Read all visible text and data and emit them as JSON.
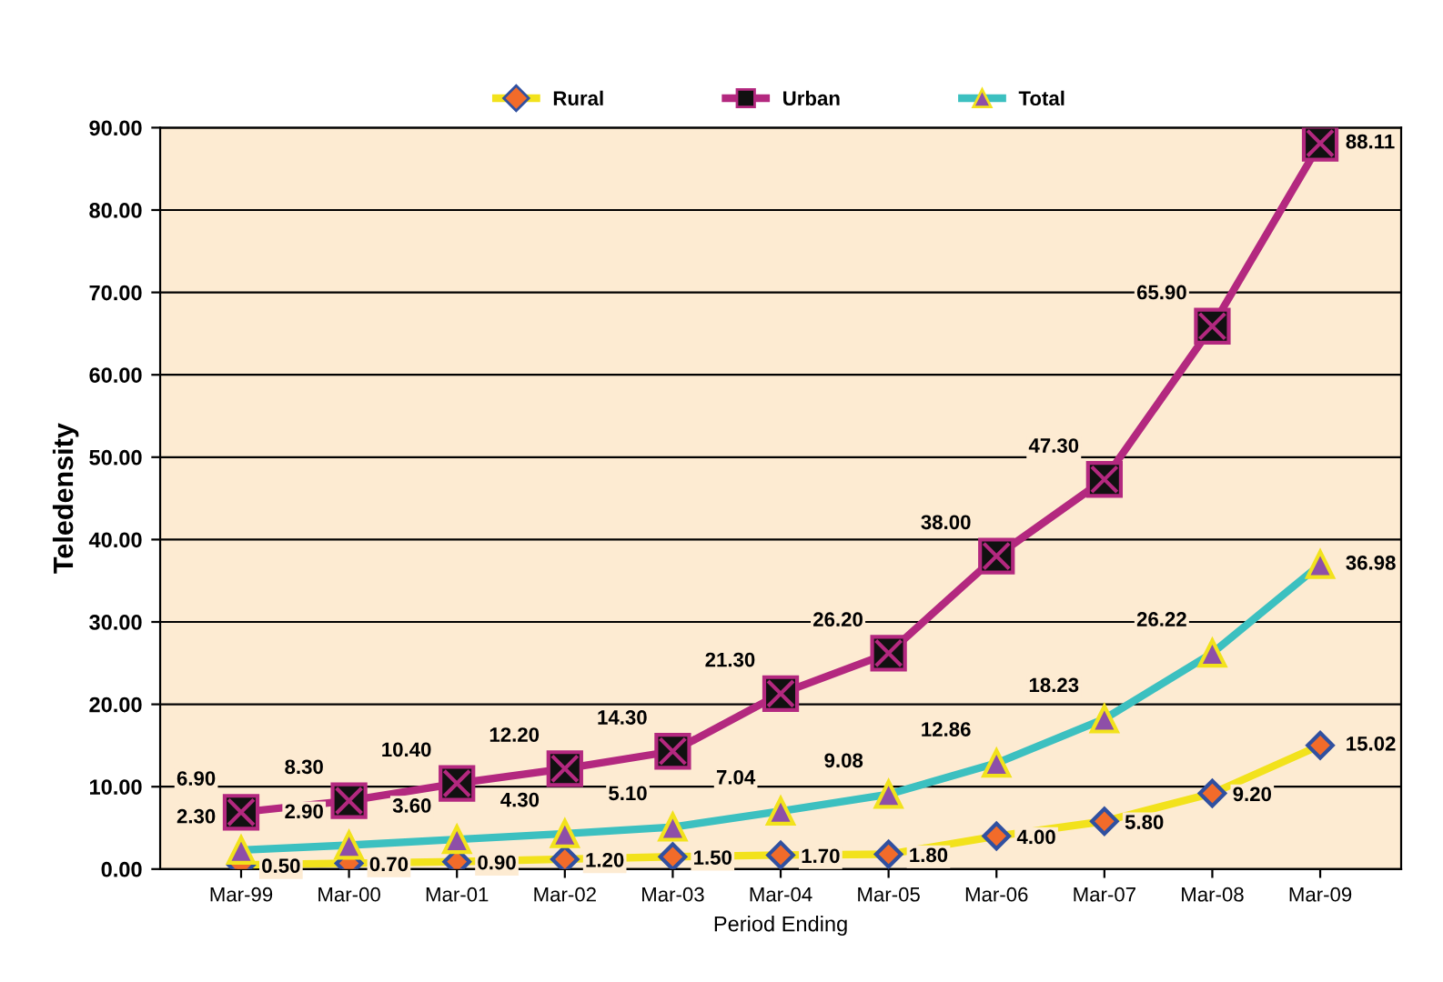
{
  "chart_data": {
    "type": "line",
    "xlabel": "Period Ending",
    "ylabel": "Teledensity",
    "categories": [
      "Mar-99",
      "Mar-00",
      "Mar-01",
      "Mar-02",
      "Mar-03",
      "Mar-04",
      "Mar-05",
      "Mar-06",
      "Mar-07",
      "Mar-08",
      "Mar-09"
    ],
    "series": [
      {
        "name": "Rural",
        "color": "#f2e21c",
        "marker": "diamond",
        "values": [
          0.5,
          0.7,
          0.9,
          1.2,
          1.5,
          1.7,
          1.8,
          4.0,
          5.8,
          9.2,
          15.02
        ],
        "value_labels": [
          "0.50",
          "0.70",
          "0.90",
          "1.20",
          "1.50",
          "1.70",
          "1.80",
          "4.00",
          "5.80",
          "9.20",
          "15.02"
        ]
      },
      {
        "name": "Urban",
        "color": "#b3287f",
        "marker": "square",
        "values": [
          6.9,
          8.3,
          10.4,
          12.2,
          14.3,
          21.3,
          26.2,
          38.0,
          47.3,
          65.9,
          88.11
        ],
        "value_labels": [
          "6.90",
          "8.30",
          "10.40",
          "12.20",
          "14.30",
          "21.30",
          "26.20",
          "38.00",
          "47.30",
          "65.90",
          "88.11"
        ]
      },
      {
        "name": "Total",
        "color": "#3cc0c0",
        "marker": "triangle",
        "values": [
          2.3,
          2.9,
          3.6,
          4.3,
          5.1,
          7.04,
          9.08,
          12.86,
          18.23,
          26.22,
          36.98
        ],
        "value_labels": [
          "2.30",
          "2.90",
          "3.60",
          "4.30",
          "5.10",
          "7.04",
          "9.08",
          "12.86",
          "18.23",
          "26.22",
          "36.98"
        ]
      }
    ],
    "ylim": [
      0,
      90
    ],
    "yticks": [
      {
        "value": 0,
        "label": "0.00"
      },
      {
        "value": 10,
        "label": "10.00"
      },
      {
        "value": 20,
        "label": "20.00"
      },
      {
        "value": 30,
        "label": "30.00"
      },
      {
        "value": 40,
        "label": "40.00"
      },
      {
        "value": 50,
        "label": "50.00"
      },
      {
        "value": 60,
        "label": "60.00"
      },
      {
        "value": 70,
        "label": "70.00"
      },
      {
        "value": 80,
        "label": "80.00"
      },
      {
        "value": 90,
        "label": "90.00"
      }
    ],
    "grid": "y",
    "legend": "top",
    "line_style": "solid"
  }
}
